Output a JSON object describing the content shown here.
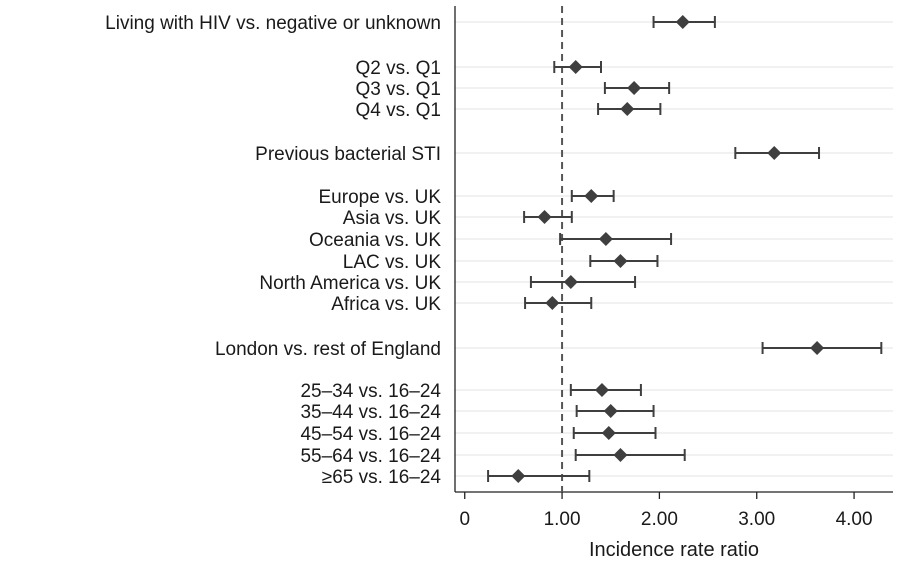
{
  "chart_data": {
    "type": "forest",
    "title": "",
    "xlabel": "Incidence rate ratio",
    "xlim": [
      -0.1,
      4.4
    ],
    "xticks": [
      0,
      1,
      2,
      3,
      4
    ],
    "xtick_labels": [
      "0",
      "1.00",
      "2.00",
      "3.00",
      "4.00"
    ],
    "reference_line": 1.0,
    "reference_line_style": "dashed",
    "grid": true,
    "marker_color": "#3f3f3f",
    "rows": [
      {
        "label": "Living with HIV vs. negative or unknown",
        "estimate": 2.24,
        "lower": 1.94,
        "upper": 2.57
      },
      {
        "label": "Q2 vs. Q1",
        "estimate": 1.14,
        "lower": 0.92,
        "upper": 1.4
      },
      {
        "label": "Q3 vs. Q1",
        "estimate": 1.74,
        "lower": 1.44,
        "upper": 2.1
      },
      {
        "label": "Q4 vs. Q1",
        "estimate": 1.67,
        "lower": 1.37,
        "upper": 2.01
      },
      {
        "label": "Previous bacterial STI",
        "estimate": 3.18,
        "lower": 2.78,
        "upper": 3.64
      },
      {
        "label": "Europe vs. UK",
        "estimate": 1.3,
        "lower": 1.1,
        "upper": 1.53
      },
      {
        "label": "Asia vs. UK",
        "estimate": 0.82,
        "lower": 0.61,
        "upper": 1.1
      },
      {
        "label": "Oceania vs. UK",
        "estimate": 1.45,
        "lower": 0.98,
        "upper": 2.12
      },
      {
        "label": "LAC vs. UK",
        "estimate": 1.6,
        "lower": 1.29,
        "upper": 1.98
      },
      {
        "label": "North America vs. UK",
        "estimate": 1.09,
        "lower": 0.68,
        "upper": 1.75
      },
      {
        "label": "Africa vs. UK",
        "estimate": 0.9,
        "lower": 0.62,
        "upper": 1.3
      },
      {
        "label": "London vs. rest of England",
        "estimate": 3.62,
        "lower": 3.06,
        "upper": 4.28
      },
      {
        "label": "25–34 vs. 16–24",
        "estimate": 1.41,
        "lower": 1.09,
        "upper": 1.81
      },
      {
        "label": "35–44 vs. 16–24",
        "estimate": 1.5,
        "lower": 1.15,
        "upper": 1.94
      },
      {
        "label": "45–54 vs. 16–24",
        "estimate": 1.48,
        "lower": 1.12,
        "upper": 1.96
      },
      {
        "label": "55–64 vs. 16–24",
        "estimate": 1.6,
        "lower": 1.14,
        "upper": 2.26
      },
      {
        "label": "≥65 vs. 16–24",
        "estimate": 0.55,
        "lower": 0.24,
        "upper": 1.28
      }
    ]
  }
}
